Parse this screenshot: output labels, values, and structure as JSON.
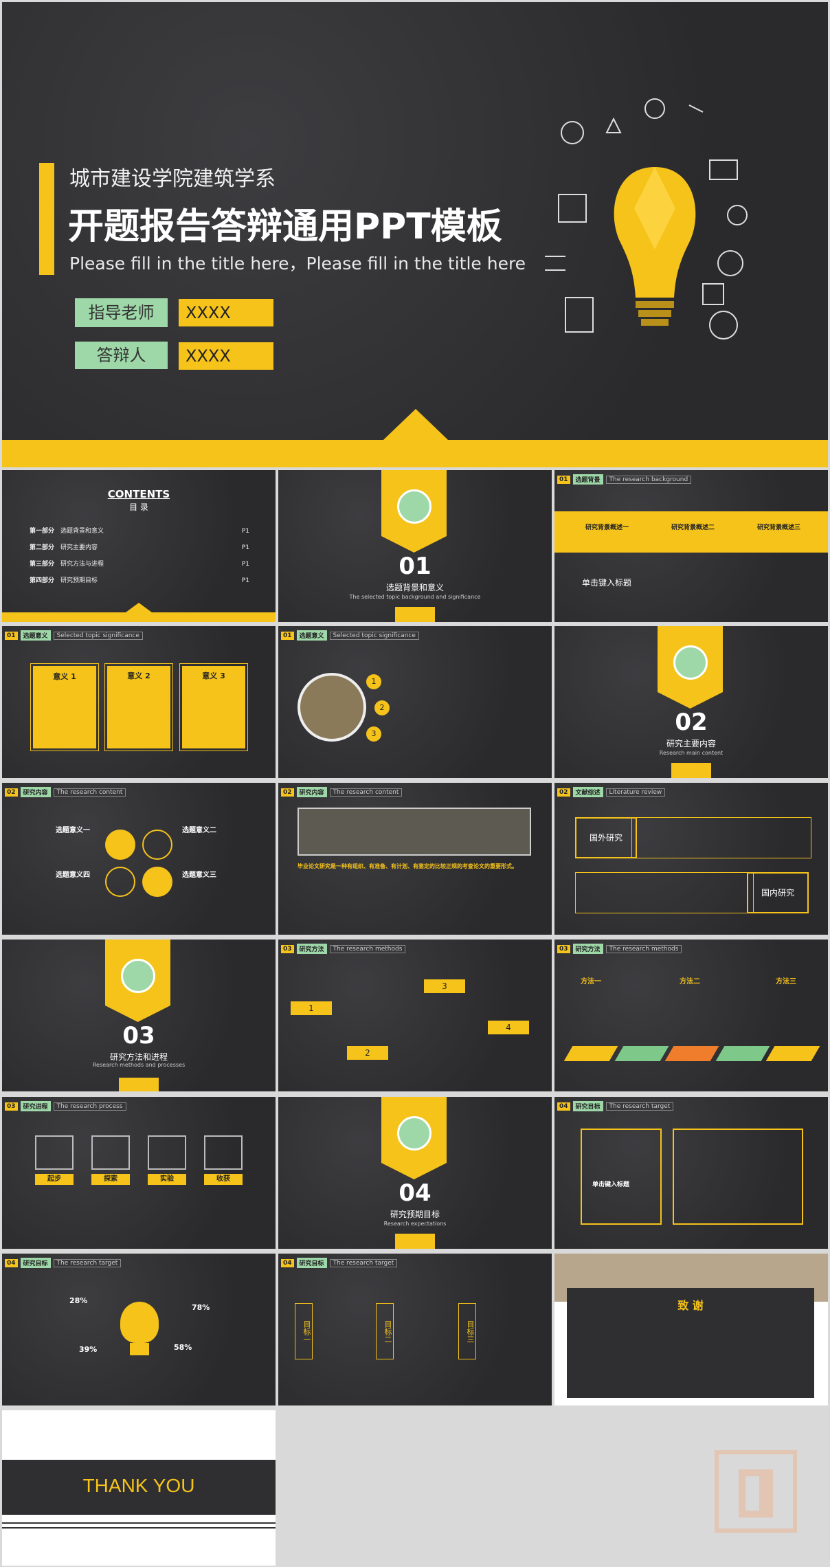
{
  "hero": {
    "subtitle": "城市建设学院建筑学系",
    "title": "开题报告答辩通用PPT模板",
    "english": "Please fill in the title here，Please fill in the title here",
    "advisor_label": "指导老师",
    "advisor_value": "XXXX",
    "defender_label": "答辩人",
    "defender_value": "XXXX"
  },
  "contents": {
    "title": "CONTENTS",
    "subtitle": "目 录",
    "items": [
      {
        "part": "第一部分",
        "label": "选题背景和意义",
        "page": "P1"
      },
      {
        "part": "第二部分",
        "label": "研究主要内容",
        "page": "P1"
      },
      {
        "part": "第三部分",
        "label": "研究方法与进程",
        "page": "P1"
      },
      {
        "part": "第四部分",
        "label": "研究预期目标",
        "page": "P1"
      }
    ]
  },
  "sections": [
    {
      "num": "01",
      "cn": "选题背景和意义",
      "en": "The selected topic background and significance"
    },
    {
      "num": "02",
      "cn": "研究主要内容",
      "en": "Research main content"
    },
    {
      "num": "03",
      "cn": "研究方法和进程",
      "en": "Research methods and processes"
    },
    {
      "num": "04",
      "cn": "研究预期目标",
      "en": "Research expectations"
    }
  ],
  "headers": {
    "bg": {
      "n": "01",
      "c": "选题背景",
      "e": "The research background"
    },
    "sig": {
      "n": "01",
      "c": "选题意义",
      "e": "Selected topic significance"
    },
    "content": {
      "n": "02",
      "c": "研究内容",
      "e": "The research content"
    },
    "review": {
      "n": "02",
      "c": "文献综述",
      "e": "Literature review"
    },
    "method": {
      "n": "03",
      "c": "研究方法",
      "e": "The research methods"
    },
    "process": {
      "n": "03",
      "c": "研究进程",
      "e": "The research process"
    },
    "target": {
      "n": "04",
      "c": "研究目标",
      "e": "The research target"
    }
  },
  "bg_slide": {
    "items": [
      "研究背景概述一",
      "研究背景概述二",
      "研究背景概述三"
    ],
    "click_title": "单击键入标题"
  },
  "sig_cards": [
    "意义 1",
    "意义 2",
    "意义 3"
  ],
  "content_items": [
    "选题意义一",
    "选题意义二",
    "选题意义四",
    "选题意义三"
  ],
  "review": {
    "foreign": "国外研究",
    "domestic": "国内研究"
  },
  "content_banner": "毕业论文研究是一种有组织、有准备、有计划、有鉴定的比较正规的考查论文的重要形式。",
  "method_steps": [
    "1",
    "2",
    "3",
    "4"
  ],
  "methods": [
    "方法一",
    "方法二",
    "方法三"
  ],
  "process_steps": [
    "起步",
    "探索",
    "实验",
    "收获"
  ],
  "target_title": "单击键入标题",
  "percents": [
    "28%",
    "78%",
    "39%",
    "58%"
  ],
  "goals": [
    "目标一",
    "目标二",
    "目标三"
  ],
  "thanks": "致 谢",
  "thank_you": "THANK YOU"
}
